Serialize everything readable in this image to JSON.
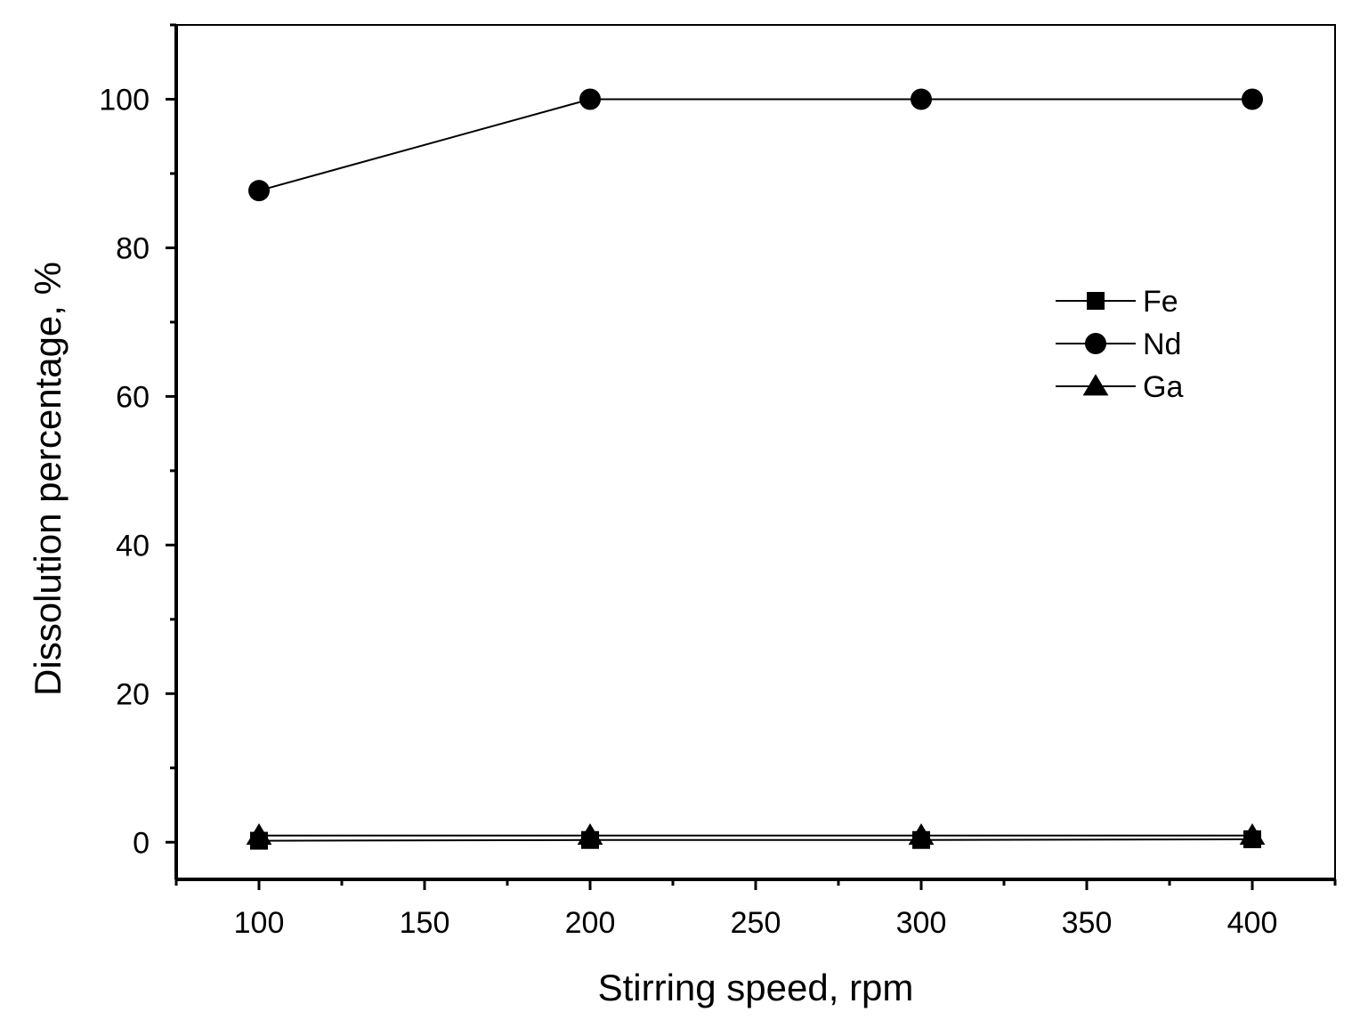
{
  "chart_data": {
    "type": "line",
    "title": "",
    "xlabel": "Stirring speed, rpm",
    "ylabel": "Dissolution percentage, %",
    "xlim": [
      75,
      425
    ],
    "ylim": [
      -5,
      110
    ],
    "x_major_ticks": [
      100,
      150,
      200,
      250,
      300,
      350,
      400
    ],
    "x_minor_ticks": [
      75,
      125,
      175,
      225,
      275,
      325,
      375,
      425
    ],
    "y_major_ticks": [
      0,
      20,
      40,
      60,
      80,
      100
    ],
    "y_minor_ticks": [
      10,
      30,
      50,
      70,
      90,
      110
    ],
    "x": [
      100,
      200,
      300,
      400
    ],
    "grid": false,
    "legend_position": "right, upper-middle",
    "series": [
      {
        "name": "Fe",
        "marker": "square",
        "values": [
          0.2,
          0.3,
          0.3,
          0.4
        ]
      },
      {
        "name": "Nd",
        "marker": "circle",
        "values": [
          87.7,
          100,
          100,
          100
        ]
      },
      {
        "name": "Ga",
        "marker": "triangle",
        "values": [
          0.9,
          0.9,
          0.9,
          0.9
        ]
      }
    ],
    "colors": {
      "line": "#000000",
      "marker": "#000000",
      "background": "#ffffff"
    }
  }
}
